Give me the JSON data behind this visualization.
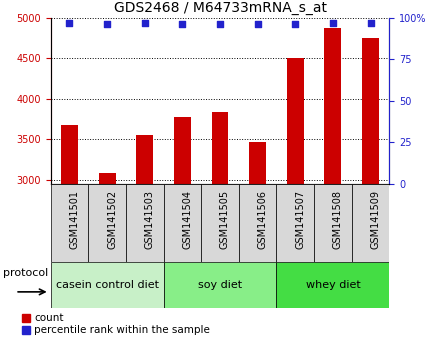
{
  "title": "GDS2468 / M64733mRNA_s_at",
  "samples": [
    "GSM141501",
    "GSM141502",
    "GSM141503",
    "GSM141504",
    "GSM141505",
    "GSM141506",
    "GSM141507",
    "GSM141508",
    "GSM141509"
  ],
  "counts": [
    3680,
    3090,
    3560,
    3780,
    3840,
    3470,
    4500,
    4870,
    4750
  ],
  "percentile_ranks": [
    97,
    96,
    97,
    96,
    96,
    96,
    96,
    97,
    97
  ],
  "ylim_left": [
    2950,
    5000
  ],
  "ylim_right": [
    0,
    100
  ],
  "yticks_left": [
    3000,
    3500,
    4000,
    4500,
    5000
  ],
  "yticks_right": [
    0,
    25,
    50,
    75,
    100
  ],
  "bar_color": "#cc0000",
  "dot_color": "#2222cc",
  "left_axis_color": "#cc0000",
  "right_axis_color": "#2222cc",
  "protocol_label": "protocol",
  "legend_count": "count",
  "legend_percentile": "percentile rank within the sample",
  "group_configs": [
    {
      "label": "casein control diet",
      "start": 0,
      "end": 3,
      "color": "#c8f0c8"
    },
    {
      "label": "soy diet",
      "start": 3,
      "end": 6,
      "color": "#88ee88"
    },
    {
      "label": "whey diet",
      "start": 6,
      "end": 9,
      "color": "#44dd44"
    }
  ],
  "sample_box_color": "#d8d8d8",
  "bar_width": 0.45,
  "title_fontsize": 10,
  "tick_fontsize": 7,
  "group_fontsize": 8
}
